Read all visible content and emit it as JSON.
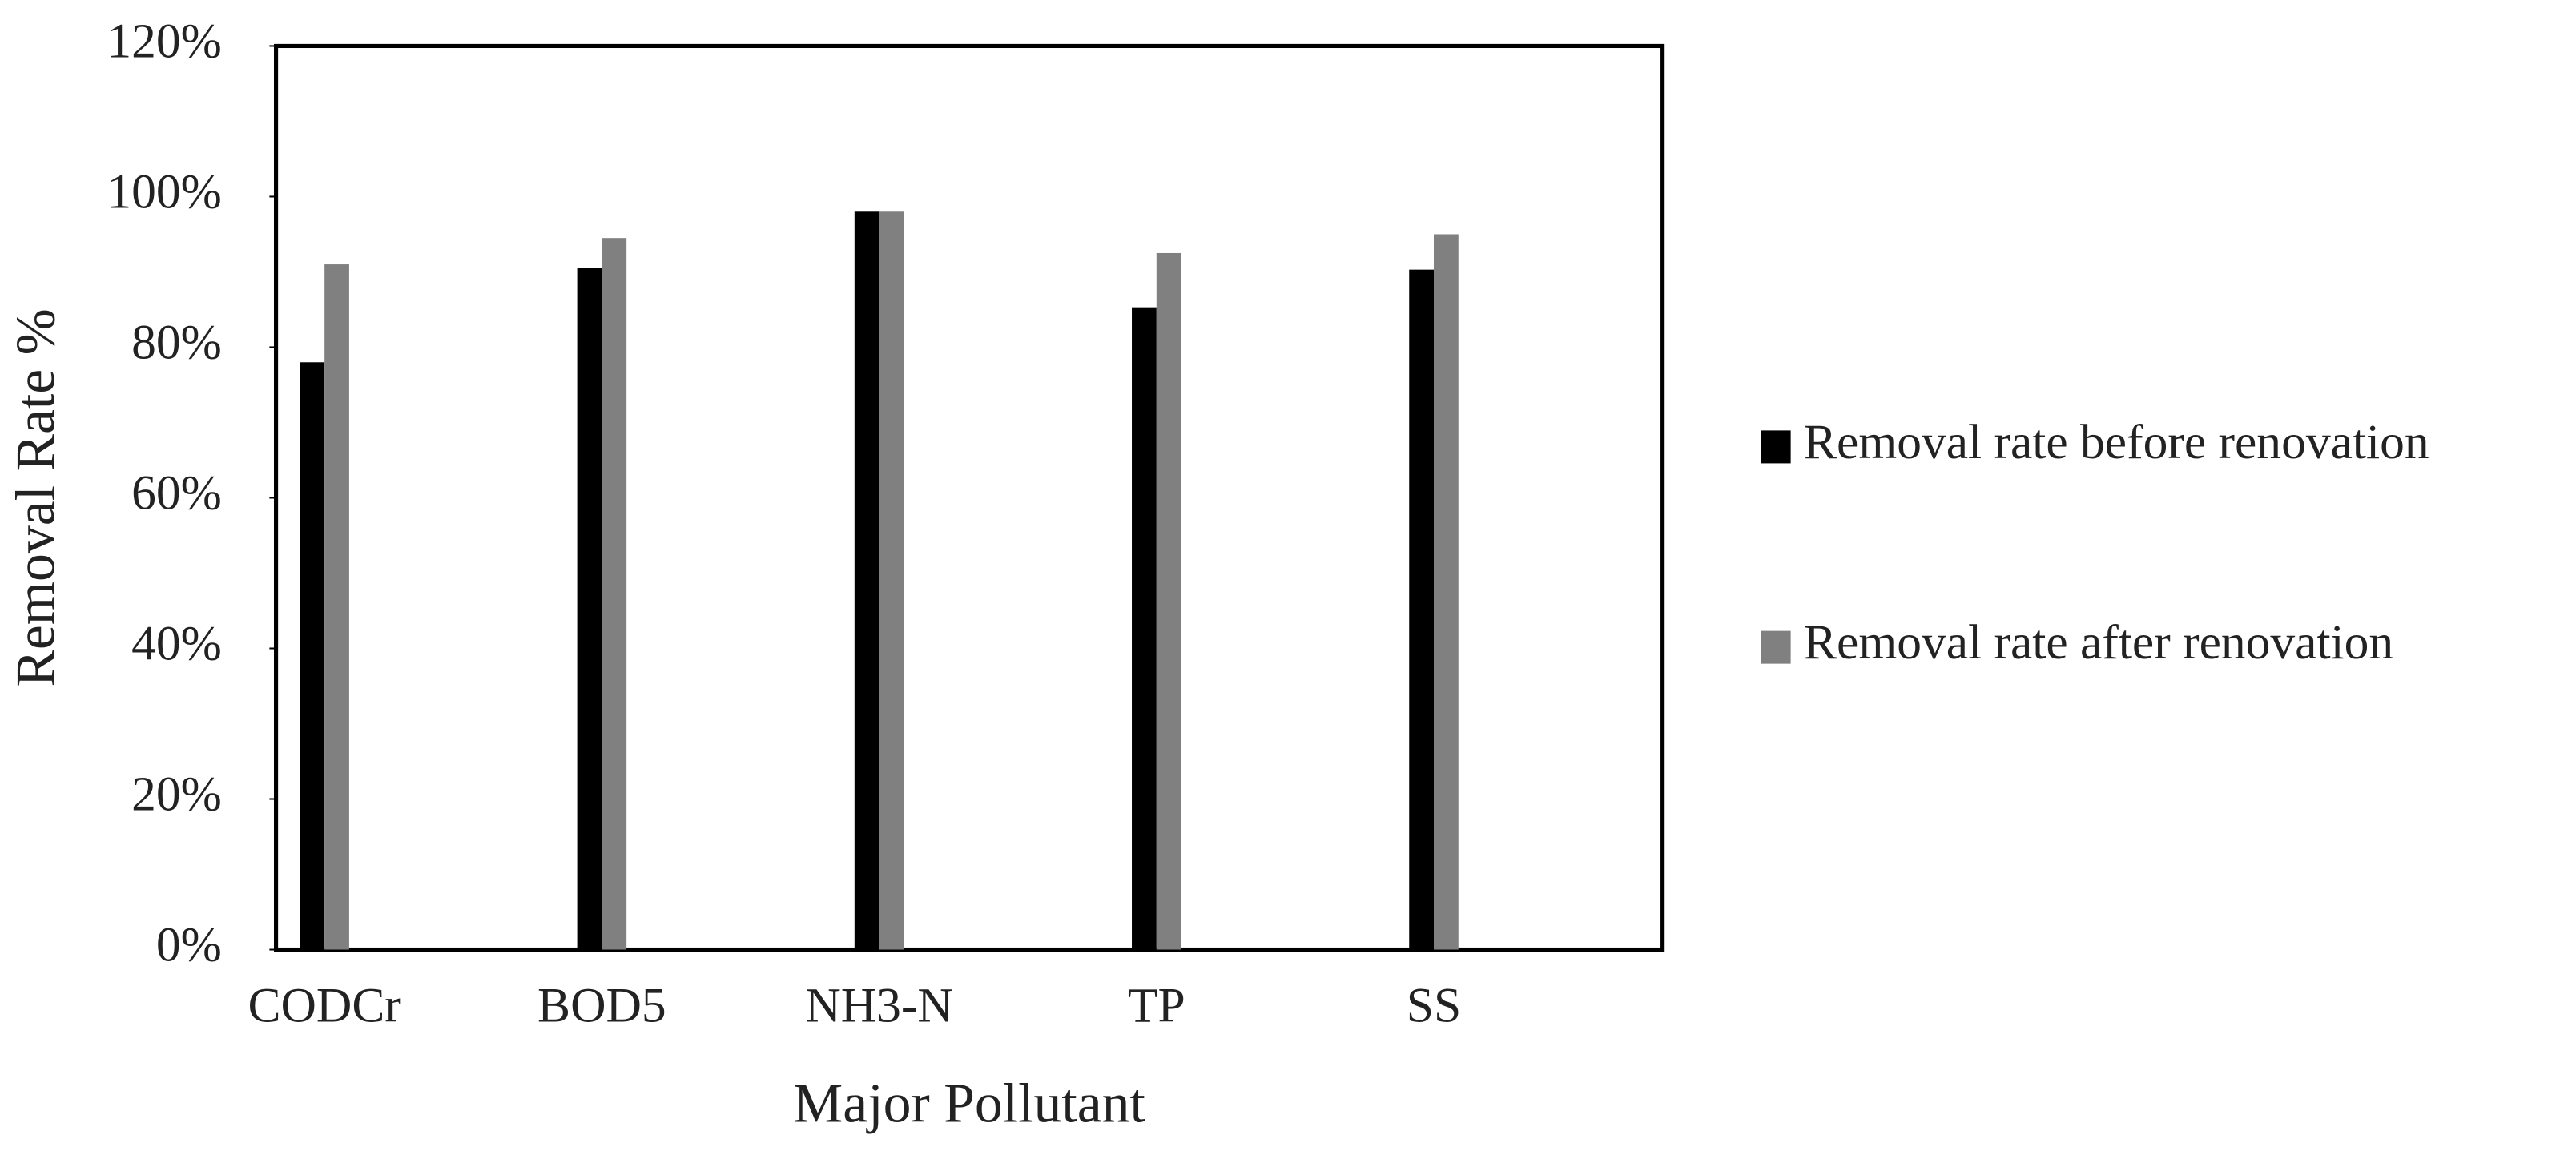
{
  "chart_data": {
    "type": "bar",
    "x_label": "Major Pollutant",
    "y_label": "Removal Rate %",
    "categories": [
      "CODCr",
      "BOD5",
      "NH3-N",
      "TP",
      "SS"
    ],
    "series": [
      {
        "name": "Removal rate before renovation",
        "color": "#000000",
        "values": [
          78,
          90.5,
          98,
          85.3,
          90.3
        ]
      },
      {
        "name": "Removal rate after renovation",
        "color": "#808080",
        "values": [
          91,
          94.5,
          98,
          92.5,
          95
        ]
      }
    ],
    "ylim": [
      0,
      120
    ],
    "yticks": [
      {
        "value": 0,
        "label": "0%"
      },
      {
        "value": 20,
        "label": "20%"
      },
      {
        "value": 40,
        "label": "40%"
      },
      {
        "value": 60,
        "label": "60%"
      },
      {
        "value": 80,
        "label": "80%"
      },
      {
        "value": 100,
        "label": "100%"
      },
      {
        "value": 120,
        "label": "120%"
      }
    ],
    "legend": "right"
  }
}
